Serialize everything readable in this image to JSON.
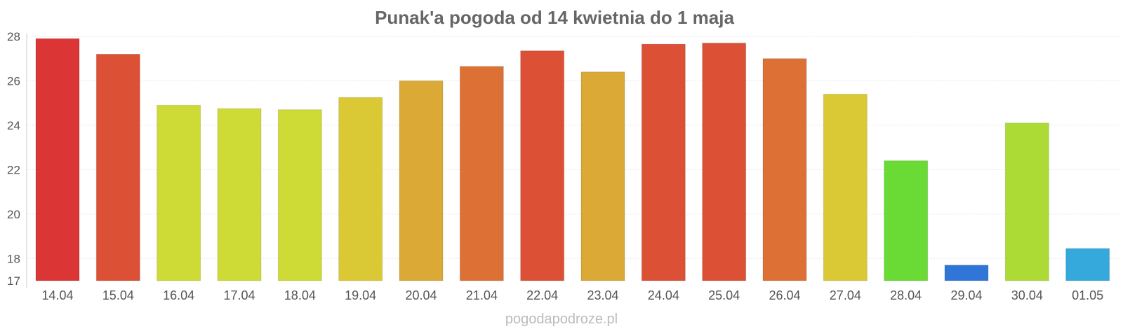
{
  "chart_data": {
    "type": "bar",
    "title": "Punak'a pogoda od 14 kwietnia do 1 maja",
    "xlabel": "",
    "ylabel": "",
    "ylim": [
      17,
      28
    ],
    "yticks": [
      17,
      18,
      20,
      22,
      24,
      26,
      28
    ],
    "grid": true,
    "legend": "none",
    "categories": [
      "14.04",
      "15.04",
      "16.04",
      "17.04",
      "18.04",
      "19.04",
      "20.04",
      "21.04",
      "22.04",
      "23.04",
      "24.04",
      "25.04",
      "26.04",
      "27.04",
      "28.04",
      "29.04",
      "30.04",
      "01.05"
    ],
    "values": [
      27.9,
      27.2,
      24.9,
      24.75,
      24.7,
      25.25,
      26.0,
      26.65,
      27.35,
      26.4,
      27.65,
      27.7,
      27.0,
      25.4,
      22.4,
      17.7,
      24.1,
      18.45
    ],
    "colors": [
      "#dc3535",
      "#dc5035",
      "#ceda35",
      "#ceda35",
      "#ceda35",
      "#dac935",
      "#dba935",
      "#dd7035",
      "#dc5035",
      "#dba935",
      "#dc5035",
      "#dc5035",
      "#dd7035",
      "#dac935",
      "#6adb35",
      "#3075d8",
      "#acdb35",
      "#35a8dc"
    ]
  },
  "footer": {
    "watermark": "pogodapodroze.pl"
  }
}
